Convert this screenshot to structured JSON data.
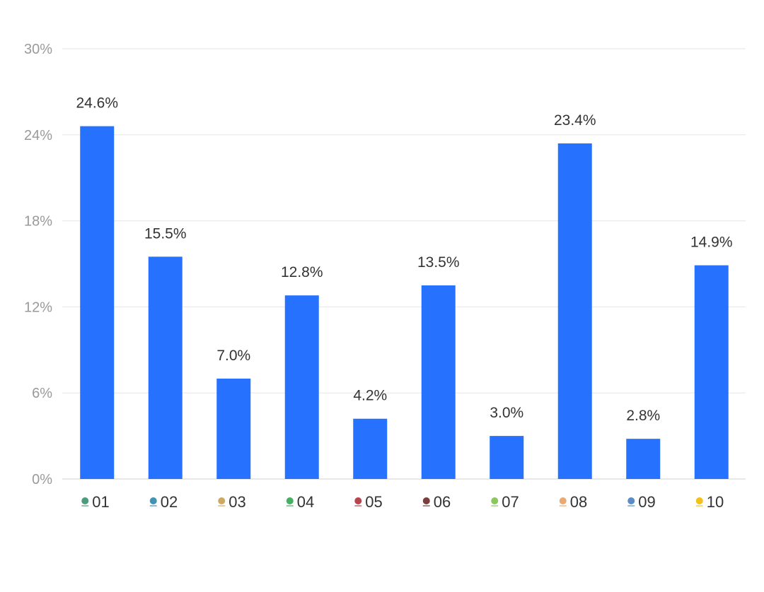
{
  "chart_data": {
    "type": "bar",
    "categories": [
      "01",
      "02",
      "03",
      "04",
      "05",
      "06",
      "07",
      "08",
      "09",
      "10"
    ],
    "category_icons": [
      "logo-icon-01",
      "logo-icon-02",
      "logo-icon-03",
      "logo-icon-04",
      "logo-icon-05",
      "logo-icon-06",
      "logo-icon-07",
      "logo-icon-08",
      "logo-icon-09",
      "logo-icon-10"
    ],
    "values": [
      24.6,
      15.5,
      7.0,
      12.8,
      4.2,
      13.5,
      3.0,
      23.4,
      2.8,
      14.9
    ],
    "value_labels": [
      "24.6%",
      "15.5%",
      "7.0%",
      "12.8%",
      "4.2%",
      "13.5%",
      "3.0%",
      "23.4%",
      "2.8%",
      "14.9%"
    ],
    "yticks": [
      0,
      6,
      12,
      18,
      24,
      30
    ],
    "ytick_labels": [
      "0%",
      "6%",
      "12%",
      "18%",
      "24%",
      "30%"
    ],
    "ylim": [
      0,
      30
    ],
    "title": "",
    "xlabel": "",
    "ylabel": "",
    "grid": true,
    "bar_color": "#2672FF",
    "icon_colors": [
      "#3a8f6e",
      "#2e86a8",
      "#c9a050",
      "#2fa84f",
      "#b0303a",
      "#6a2a2a",
      "#7cc24a",
      "#e8a060",
      "#4a7fc0",
      "#f2b800"
    ]
  }
}
